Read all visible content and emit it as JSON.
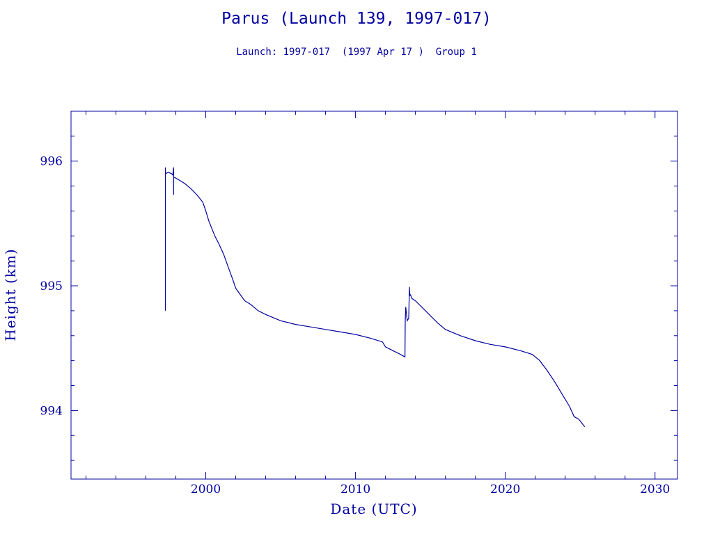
{
  "chart_data": {
    "type": "line",
    "title": "Parus (Launch 139, 1997-017)",
    "subtitle": "Launch: 1997-017  (1997 Apr 17 )  Group 1",
    "xlabel": "Date (UTC)",
    "ylabel": "Height (km)",
    "xlim": [
      1991.0,
      2031.5
    ],
    "ylim": [
      993.45,
      996.4
    ],
    "xticks": [
      2000,
      2010,
      2020,
      2030
    ],
    "yticks": [
      994,
      995,
      996
    ],
    "grid": false,
    "series": [
      {
        "color": "#0000a0",
        "x": [
          1997.3,
          1997.3,
          1997.3,
          1997.31,
          1997.5,
          1997.7,
          1997.8,
          1997.85,
          1997.85,
          1997.85,
          1997.9,
          1998.2,
          1998.6,
          1999.0,
          1999.4,
          1999.8,
          2000.0,
          2000.2,
          2000.4,
          2000.6,
          2000.9,
          2001.2,
          2001.5,
          2001.8,
          2002.0,
          2002.3,
          2002.6,
          2003.0,
          2003.5,
          2004.0,
          2005.0,
          2006.0,
          2007.0,
          2008.0,
          2009.0,
          2010.0,
          2011.0,
          2011.8,
          2012.0,
          2012.5,
          2013.0,
          2013.3,
          2013.32,
          2013.35,
          2013.45,
          2013.55,
          2013.6,
          2013.62,
          2013.65,
          2013.7,
          2013.72,
          2013.75,
          2014.0,
          2014.5,
          2015.0,
          2015.5,
          2016.0,
          2017.0,
          2018.0,
          2019.0,
          2020.0,
          2021.0,
          2021.8,
          2022.3,
          2022.8,
          2023.3,
          2023.8,
          2024.3,
          2024.6,
          2024.9,
          2025.1,
          2025.3
        ],
        "y": [
          994.8,
          995.95,
          995.92,
          995.9,
          995.91,
          995.9,
          995.89,
          995.95,
          995.73,
          995.87,
          995.87,
          995.85,
          995.82,
          995.78,
          995.73,
          995.67,
          995.6,
          995.52,
          995.46,
          995.4,
          995.33,
          995.25,
          995.15,
          995.05,
          994.98,
          994.93,
          994.88,
          994.85,
          994.8,
          994.77,
          994.72,
          994.69,
          994.67,
          994.65,
          994.63,
          994.61,
          994.58,
          994.55,
          994.51,
          994.48,
          994.45,
          994.43,
          994.72,
          994.83,
          994.72,
          994.74,
          994.99,
          994.92,
          994.93,
          994.92,
          994.91,
          994.9,
          994.88,
          994.82,
          994.76,
          994.7,
          994.65,
          994.6,
          994.56,
          994.53,
          994.51,
          994.48,
          994.45,
          994.4,
          994.32,
          994.23,
          994.13,
          994.03,
          993.95,
          993.93,
          993.9,
          993.87
        ]
      }
    ]
  }
}
